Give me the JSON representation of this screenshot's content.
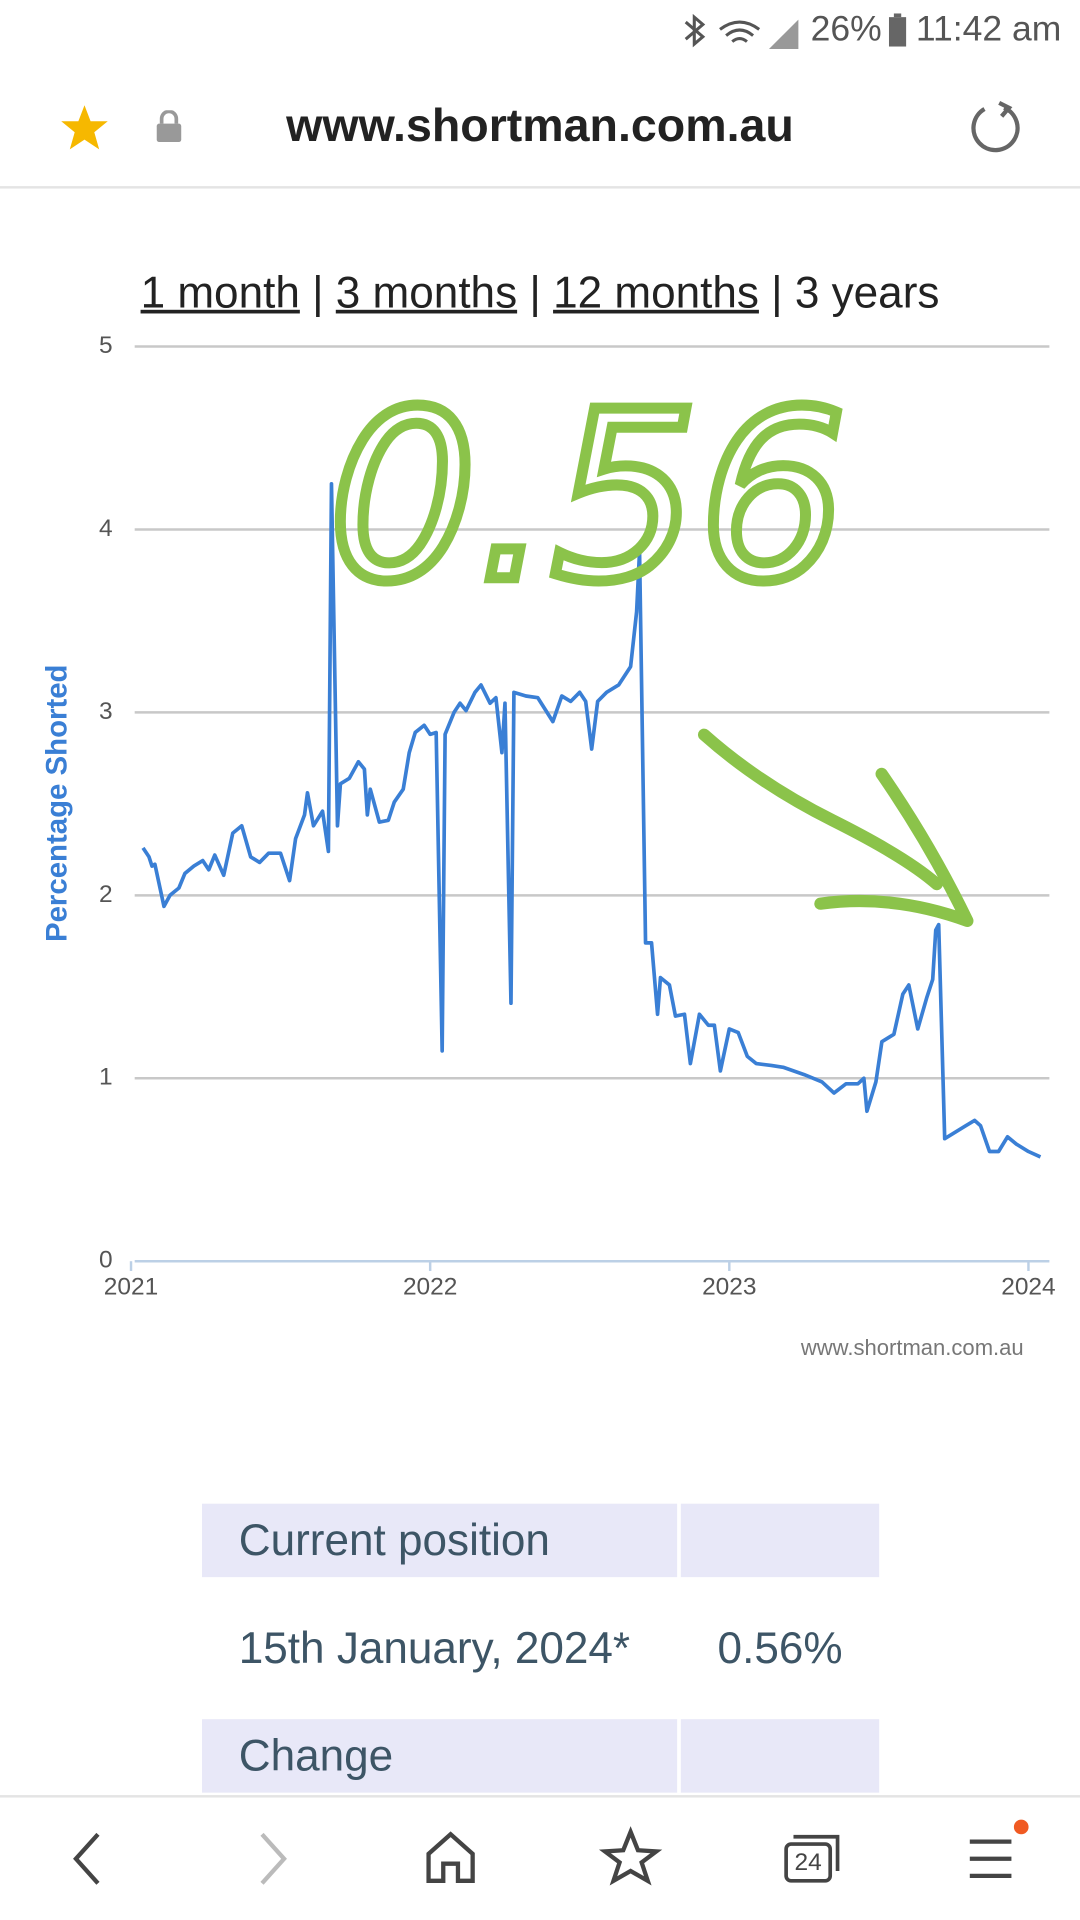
{
  "status_bar": {
    "battery": "26%",
    "time": "11:42 am"
  },
  "address_bar": {
    "url": "www.shortman.com.au"
  },
  "range_links": [
    "1 month",
    "3 months",
    "12 months",
    "3 years"
  ],
  "chart_data": {
    "type": "line",
    "y_label": "Percentage Shorted",
    "credit": "www.shortman.com.au",
    "annotation": "0.56",
    "x": [
      2021.04,
      2021.06,
      2021.07,
      2021.08,
      2021.11,
      2021.13,
      2021.16,
      2021.18,
      2021.21,
      2021.24,
      2021.26,
      2021.28,
      2021.31,
      2021.34,
      2021.37,
      2021.4,
      2021.43,
      2021.46,
      2021.5,
      2021.53,
      2021.55,
      2021.58,
      2021.59,
      2021.61,
      2021.64,
      2021.66,
      2021.67,
      2021.69,
      2021.7,
      2021.73,
      2021.76,
      2021.78,
      2021.79,
      2021.8,
      2021.83,
      2021.86,
      2021.88,
      2021.91,
      2021.93,
      2021.95,
      2021.98,
      2022.0,
      2022.02,
      2022.04,
      2022.05,
      2022.08,
      2022.1,
      2022.12,
      2022.15,
      2022.17,
      2022.2,
      2022.22,
      2022.24,
      2022.25,
      2022.27,
      2022.28,
      2022.32,
      2022.36,
      2022.41,
      2022.44,
      2022.47,
      2022.5,
      2022.52,
      2022.54,
      2022.56,
      2022.59,
      2022.63,
      2022.67,
      2022.69,
      2022.7,
      2022.72,
      2022.74,
      2022.76,
      2022.77,
      2022.8,
      2022.82,
      2022.85,
      2022.87,
      2022.9,
      2022.93,
      2022.95,
      2022.97,
      2023.0,
      2023.03,
      2023.06,
      2023.09,
      2023.14,
      2023.18,
      2023.25,
      2023.31,
      2023.35,
      2023.39,
      2023.43,
      2023.45,
      2023.46,
      2023.49,
      2023.51,
      2023.55,
      2023.58,
      2023.6,
      2023.63,
      2023.66,
      2023.68,
      2023.69,
      2023.7,
      2023.72,
      2023.75,
      2023.79,
      2023.82,
      2023.84,
      2023.87,
      2023.9,
      2023.93,
      2023.96,
      2024.0,
      2024.04
    ],
    "series": [
      {
        "name": "Percentage Shorted",
        "color": "#3a7fd5",
        "values": [
          2.26,
          2.21,
          2.16,
          2.17,
          1.94,
          2.0,
          2.04,
          2.12,
          2.16,
          2.19,
          2.14,
          2.22,
          2.11,
          2.34,
          2.38,
          2.21,
          2.18,
          2.23,
          2.23,
          2.08,
          2.31,
          2.44,
          2.56,
          2.38,
          2.46,
          2.24,
          4.25,
          2.38,
          2.61,
          2.64,
          2.73,
          2.69,
          2.44,
          2.58,
          2.4,
          2.41,
          2.51,
          2.58,
          2.78,
          2.89,
          2.93,
          2.88,
          2.89,
          1.15,
          2.88,
          3.0,
          3.05,
          3.01,
          3.11,
          3.15,
          3.05,
          3.08,
          2.78,
          3.05,
          1.41,
          3.11,
          3.09,
          3.08,
          2.95,
          3.09,
          3.06,
          3.11,
          3.06,
          2.8,
          3.06,
          3.11,
          3.15,
          3.25,
          3.55,
          3.88,
          1.74,
          1.74,
          1.35,
          1.55,
          1.51,
          1.34,
          1.35,
          1.08,
          1.35,
          1.29,
          1.29,
          1.04,
          1.27,
          1.25,
          1.12,
          1.08,
          1.07,
          1.06,
          1.02,
          0.98,
          0.92,
          0.97,
          0.97,
          1.0,
          0.82,
          0.98,
          1.2,
          1.24,
          1.46,
          1.51,
          1.27,
          1.44,
          1.54,
          1.81,
          1.84,
          0.67,
          0.7,
          0.74,
          0.77,
          0.74,
          0.6,
          0.6,
          0.68,
          0.64,
          0.6,
          0.57
        ]
      }
    ],
    "xlim": [
      2021,
      2024.07
    ],
    "xticks": [
      2021,
      2022,
      2023,
      2024
    ],
    "ylim": [
      0,
      5
    ],
    "yticks": [
      0,
      1,
      2,
      3,
      4,
      5
    ],
    "grid": true
  },
  "table": {
    "header": "Current position",
    "rows": [
      {
        "date": "15th January, 2024*",
        "value": "0.56%"
      }
    ],
    "next_header": "Change"
  },
  "bottom_nav": {
    "tab_count": "24"
  }
}
